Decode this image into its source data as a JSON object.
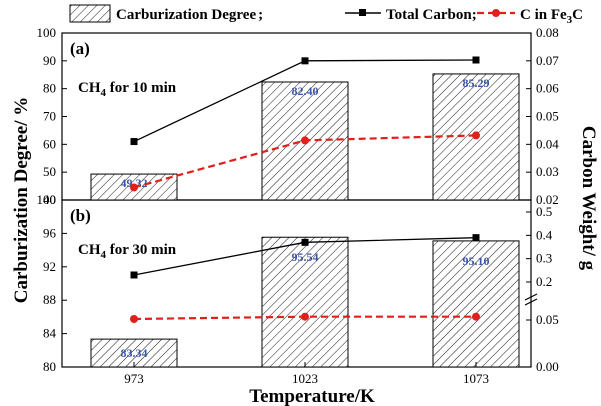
{
  "chart_data": {
    "type": "bar+line",
    "legend": {
      "position": "top",
      "items": [
        {
          "label": "Carburization Degree",
          "suffix": ";",
          "kind": "hatched-bar"
        },
        {
          "label": "Total Carbon;",
          "kind": "line-square",
          "color": "#000000"
        },
        {
          "label_main": "C in Fe",
          "label_sub": "3",
          "label_tail": "C",
          "kind": "line-dash-circle",
          "color": "#e0201b"
        }
      ]
    },
    "xlabel": "Temperature/K",
    "ylabel_left": "Carburization Degree/ %",
    "ylabel_right": "Carbon Weight/ g",
    "categories": [
      "973",
      "1023",
      "1073"
    ],
    "panels": [
      {
        "tag": "(a)",
        "condition_main": "CH",
        "condition_sub": "4",
        "condition_tail": " for 10 min",
        "ylim_left": [
          40,
          100
        ],
        "yticks_left": [
          "40",
          "50",
          "60",
          "70",
          "80",
          "90",
          "100"
        ],
        "ylim_right": [
          0.02,
          0.08
        ],
        "yticks_right": [
          "0.02",
          "0.03",
          "0.04",
          "0.05",
          "0.06",
          "0.07",
          "0.08"
        ],
        "bars": [
          49.32,
          82.4,
          85.29
        ],
        "bar_labels": [
          "49.32",
          "82.40",
          "85.29"
        ],
        "series": [
          {
            "name": "Total Carbon",
            "values": [
              0.041,
              0.07,
              0.0703
            ]
          },
          {
            "name": "C in Fe3C",
            "values": [
              0.0245,
              0.0414,
              0.0432
            ]
          }
        ]
      },
      {
        "tag": "(b)",
        "condition_main": "CH",
        "condition_sub": "4",
        "condition_tail": " for 30 min",
        "ylim_left": [
          80,
          100
        ],
        "yticks_left": [
          "80",
          "84",
          "88",
          "92",
          "96",
          "100"
        ],
        "right_axis_broken": true,
        "yticks_right": [
          "0.00",
          "0.05",
          "0.2",
          "0.3",
          "0.4",
          "0.5"
        ],
        "bars": [
          83.34,
          95.54,
          95.1
        ],
        "bar_labels": [
          "83.34",
          "95.54",
          "95.10"
        ],
        "series": [
          {
            "name": "Total Carbon",
            "values": [
              0.23,
              0.37,
              0.39
            ]
          },
          {
            "name": "C in Fe3C",
            "values": [
              0.054,
              0.063,
              0.063
            ]
          }
        ]
      }
    ]
  }
}
